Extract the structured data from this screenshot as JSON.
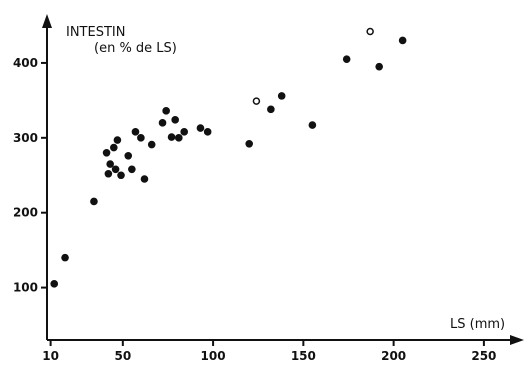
{
  "chart_data": {
    "type": "scatter",
    "title": "",
    "ylabel_line1": "INTESTIN",
    "ylabel_line2": "(en % de LS)",
    "xlabel": "LS (mm)",
    "x_ticks": [
      10,
      50,
      100,
      150,
      200,
      250
    ],
    "y_ticks": [
      100,
      200,
      300,
      400
    ],
    "xlim": [
      8,
      270
    ],
    "ylim": [
      30,
      460
    ],
    "series": [
      {
        "marker": "filled",
        "points": [
          {
            "x": 12,
            "y": 105
          },
          {
            "x": 18,
            "y": 140
          },
          {
            "x": 34,
            "y": 215
          },
          {
            "x": 41,
            "y": 280
          },
          {
            "x": 42,
            "y": 252
          },
          {
            "x": 43,
            "y": 265
          },
          {
            "x": 45,
            "y": 287
          },
          {
            "x": 46,
            "y": 258
          },
          {
            "x": 47,
            "y": 297
          },
          {
            "x": 49,
            "y": 250
          },
          {
            "x": 53,
            "y": 276
          },
          {
            "x": 55,
            "y": 258
          },
          {
            "x": 57,
            "y": 308
          },
          {
            "x": 60,
            "y": 300
          },
          {
            "x": 62,
            "y": 245
          },
          {
            "x": 66,
            "y": 291
          },
          {
            "x": 72,
            "y": 320
          },
          {
            "x": 74,
            "y": 336
          },
          {
            "x": 77,
            "y": 301
          },
          {
            "x": 79,
            "y": 324
          },
          {
            "x": 81,
            "y": 300
          },
          {
            "x": 84,
            "y": 308
          },
          {
            "x": 93,
            "y": 313
          },
          {
            "x": 97,
            "y": 308
          },
          {
            "x": 120,
            "y": 292
          },
          {
            "x": 132,
            "y": 338
          },
          {
            "x": 138,
            "y": 356
          },
          {
            "x": 155,
            "y": 317
          },
          {
            "x": 174,
            "y": 405
          },
          {
            "x": 192,
            "y": 395
          },
          {
            "x": 205,
            "y": 430
          }
        ]
      },
      {
        "marker": "open",
        "points": [
          {
            "x": 124,
            "y": 349
          },
          {
            "x": 187,
            "y": 442
          }
        ]
      }
    ],
    "grid": false,
    "legend": "none"
  }
}
